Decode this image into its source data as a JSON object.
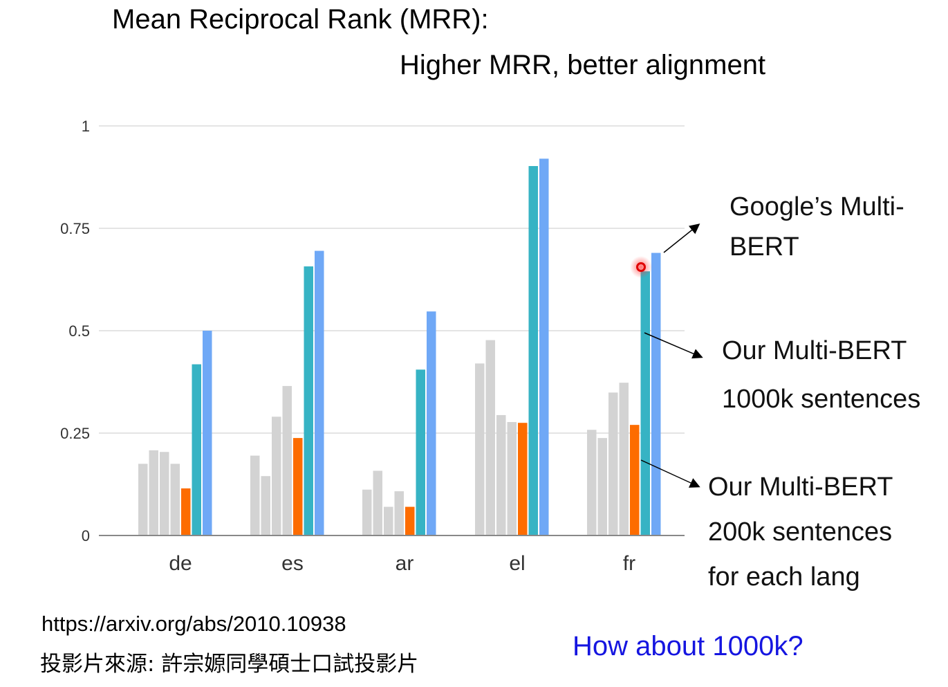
{
  "header": {
    "title": "Mean Reciprocal Rank (MRR):",
    "subtitle": "Higher MRR, better alignment"
  },
  "chart_data": {
    "type": "bar",
    "categories": [
      "de",
      "es",
      "ar",
      "el",
      "fr"
    ],
    "ylim": [
      0,
      1
    ],
    "yticks": [
      "0",
      "0.25",
      "0.5",
      "0.75",
      "1"
    ],
    "ytick_values": [
      0,
      0.25,
      0.5,
      0.75,
      1
    ],
    "grid": true,
    "colors": {
      "baseline": "#d3d3d3",
      "ours_200k": "#fd6c00",
      "ours_1000k": "#36b3c4",
      "google_multibert": "#6fa8f6"
    },
    "baseline_values": [
      [
        0.175,
        0.208,
        0.204,
        0.175
      ],
      [
        0.195,
        0.145,
        0.29,
        0.365
      ],
      [
        0.112,
        0.158,
        0.07,
        0.108
      ],
      [
        0.42,
        0.477,
        0.294,
        0.277
      ],
      [
        0.258,
        0.238,
        0.349,
        0.373
      ]
    ],
    "series": [
      {
        "key": "ours_200k",
        "values": [
          0.115,
          0.238,
          0.07,
          0.275,
          0.27
        ]
      },
      {
        "key": "ours_1000k",
        "values": [
          0.418,
          0.657,
          0.405,
          0.902,
          0.645
        ]
      },
      {
        "key": "google_multibert",
        "values": [
          0.5,
          0.695,
          0.547,
          0.92,
          0.69
        ]
      }
    ]
  },
  "annotations": {
    "google": [
      "Google’s Multi-",
      "BERT"
    ],
    "ours_1000k": [
      "Our Multi-BERT",
      "1000k sentences"
    ],
    "ours_200k": [
      "Our Multi-BERT",
      "200k sentences",
      "for each lang"
    ]
  },
  "footer": {
    "url": "https://arxiv.org/abs/2010.10938",
    "source_note": "投影片來源: 許宗嫄同學碩士口試投影片",
    "question": "How about 1000k?"
  }
}
